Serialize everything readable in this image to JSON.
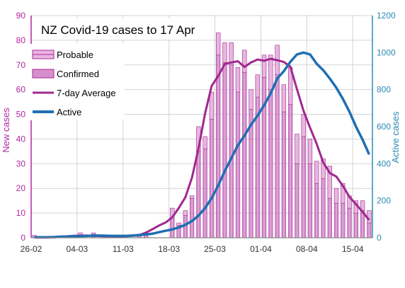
{
  "chart_data": {
    "type": "bar",
    "title": "NZ Covid-19 cases to 17 Apr",
    "ylabel": "New cases",
    "y2label": "Active cases",
    "ylim": [
      0,
      90
    ],
    "y2lim": [
      0,
      1200
    ],
    "y_ticks": [
      "0",
      "10",
      "20",
      "30",
      "40",
      "50",
      "60",
      "70",
      "80",
      "90"
    ],
    "y2_ticks": [
      "0",
      "200",
      "400",
      "600",
      "800",
      "1000",
      "1200"
    ],
    "x_ticks": [
      "26-02",
      "04-03",
      "11-03",
      "18-03",
      "25-03",
      "01-04",
      "08-04",
      "15-04"
    ],
    "legend_position": "top-left",
    "grid": true,
    "colors": {
      "bars": "#c266b8",
      "bar_light": "#e7b6df",
      "avg_line": "#a0288f",
      "active_line": "#1f6fb2",
      "left_axis": "#b3269f",
      "right_axis": "#2a8bb3"
    },
    "legend": [
      "Probable",
      "Confirmed",
      "7-day Average",
      "Active"
    ],
    "x": [
      "26-02",
      "27-02",
      "28-02",
      "29-02",
      "01-03",
      "02-03",
      "03-03",
      "04-03",
      "05-03",
      "06-03",
      "07-03",
      "08-03",
      "09-03",
      "10-03",
      "11-03",
      "12-03",
      "13-03",
      "14-03",
      "15-03",
      "16-03",
      "17-03",
      "18-03",
      "19-03",
      "20-03",
      "21-03",
      "22-03",
      "23-03",
      "24-03",
      "25-03",
      "26-03",
      "27-03",
      "28-03",
      "29-03",
      "30-03",
      "31-03",
      "01-04",
      "02-04",
      "03-04",
      "04-04",
      "05-04",
      "06-04",
      "07-04",
      "08-04",
      "09-04",
      "10-04",
      "11-04",
      "12-04",
      "13-04",
      "14-04",
      "15-04",
      "16-04",
      "17-04"
    ],
    "series": [
      {
        "name": "Confirmed",
        "values": [
          1,
          0,
          0,
          0,
          0,
          0,
          0,
          1,
          0,
          2,
          0,
          0,
          0,
          0,
          0,
          0,
          1,
          1,
          0,
          0,
          0,
          8,
          5,
          9,
          16,
          35,
          36,
          48,
          74,
          71,
          70,
          59,
          67,
          52,
          57,
          65,
          60,
          66,
          51,
          54,
          30,
          41,
          30,
          22,
          24,
          16,
          14,
          14,
          12,
          10,
          11,
          6
        ]
      },
      {
        "name": "Probable",
        "values": [
          0,
          0,
          0,
          0,
          0,
          0,
          0,
          1,
          0,
          0,
          0,
          0,
          0,
          0,
          0,
          0,
          0,
          0,
          0,
          0,
          0,
          4,
          1,
          2,
          1,
          10,
          5,
          11,
          9,
          8,
          9,
          10,
          9,
          8,
          9,
          9,
          14,
          12,
          11,
          15,
          12,
          9,
          10,
          9,
          8,
          13,
          6,
          8,
          5,
          5,
          4,
          5
        ]
      },
      {
        "name": "7-day Average",
        "values": [
          0.1,
          0.1,
          0.1,
          0.2,
          0.3,
          0.6,
          0.8,
          0.9,
          0.9,
          0.8,
          0.7,
          0.5,
          0.5,
          0.5,
          0.6,
          0.8,
          1.1,
          2.1,
          3.5,
          5,
          6.2,
          8.3,
          12.1,
          16.4,
          24.3,
          36.2,
          50.3,
          61.5,
          65.5,
          70.4,
          71,
          71.5,
          69.2,
          71,
          72.2,
          71.7,
          72.5,
          71.9,
          71.2,
          69.3,
          60.2,
          51.4,
          44.6,
          38.1,
          30.5,
          26.2,
          24.8,
          21,
          16.5,
          13.6,
          10.5,
          7.2
        ]
      },
      {
        "name": "Active",
        "values": [
          3,
          3,
          3,
          4,
          6,
          7,
          8,
          9,
          10,
          12,
          12,
          11,
          10,
          10,
          10,
          12,
          15,
          18,
          22,
          30,
          38,
          45,
          56,
          70,
          90,
          120,
          160,
          214,
          282,
          360,
          430,
          500,
          552,
          610,
          660,
          716,
          780,
          860,
          900,
          950,
          990,
          1000,
          990,
          940,
          905,
          860,
          810,
          750,
          680,
          600,
          530,
          450
        ]
      }
    ]
  }
}
